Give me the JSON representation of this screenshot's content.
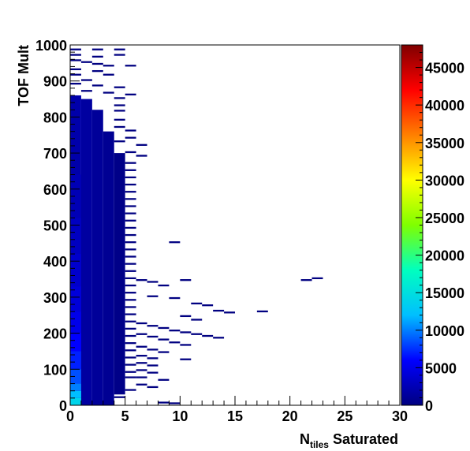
{
  "chart_data": {
    "type": "heatmap",
    "title": "",
    "xlabel": {
      "main": "N",
      "sub": "tiles",
      "rest": " Saturated"
    },
    "ylabel": "TOF Mult",
    "xlim": [
      0,
      30
    ],
    "ylim": [
      0,
      1000
    ],
    "x_bin_width": 1,
    "y_bin_width": 5,
    "x_ticks": [
      0,
      5,
      10,
      15,
      20,
      25,
      30
    ],
    "x_tick_labels": [
      "0",
      "5",
      "10",
      "15",
      "20",
      "25",
      "30"
    ],
    "y_ticks": [
      0,
      100,
      200,
      300,
      400,
      500,
      600,
      700,
      800,
      900,
      1000
    ],
    "y_tick_labels": [
      "0",
      "100",
      "200",
      "300",
      "400",
      "500",
      "600",
      "700",
      "800",
      "900",
      "1000"
    ],
    "colorbar": {
      "range": [
        0,
        48000
      ],
      "ticks": [
        0,
        5000,
        10000,
        15000,
        20000,
        25000,
        30000,
        35000,
        40000,
        45000
      ],
      "tick_labels": [
        "0",
        "5000",
        "10000",
        "15000",
        "20000",
        "25000",
        "30000",
        "35000",
        "40000",
        "45000"
      ],
      "colormap": [
        "#000080",
        "#0000ff",
        "#00bfff",
        "#00ffbf",
        "#7fff00",
        "#ffff00",
        "#ff8000",
        "#ff0000",
        "#800000"
      ]
    },
    "columns": [
      {
        "x": 0,
        "y_from": 0,
        "y_to": 860,
        "value": 2000
      },
      {
        "x": 1,
        "y_from": 0,
        "y_to": 850,
        "value": 1500
      },
      {
        "x": 2,
        "y_from": 0,
        "y_to": 820,
        "value": 1200
      },
      {
        "x": 3,
        "y_from": 0,
        "y_to": 760,
        "value": 900
      },
      {
        "x": 4,
        "y_from": 30,
        "y_to": 700,
        "value": 400
      }
    ],
    "low_end_column": [
      {
        "y_from": 0,
        "y_to": 20,
        "value": 14000
      },
      {
        "y_from": 20,
        "y_to": 40,
        "value": 12000
      },
      {
        "y_from": 40,
        "y_to": 60,
        "value": 10000
      },
      {
        "y_from": 60,
        "y_to": 100,
        "value": 8500
      },
      {
        "y_from": 100,
        "y_to": 150,
        "value": 7000
      },
      {
        "y_from": 150,
        "y_to": 200,
        "value": 6000
      },
      {
        "y_from": 200,
        "y_to": 260,
        "value": 5000
      },
      {
        "y_from": 260,
        "y_to": 330,
        "value": 4200
      },
      {
        "y_from": 330,
        "y_to": 420,
        "value": 3600
      },
      {
        "y_from": 420,
        "y_to": 520,
        "value": 3000
      },
      {
        "y_from": 520,
        "y_to": 640,
        "value": 2500
      }
    ],
    "sparse_bins": [
      [
        0,
        985
      ],
      [
        2,
        985
      ],
      [
        4,
        985
      ],
      [
        0,
        970
      ],
      [
        2,
        965
      ],
      [
        4,
        970
      ],
      [
        0,
        955
      ],
      [
        1,
        950
      ],
      [
        2,
        945
      ],
      [
        3,
        940
      ],
      [
        5,
        940
      ],
      [
        0,
        930
      ],
      [
        2,
        925
      ],
      [
        0,
        915
      ],
      [
        3,
        915
      ],
      [
        1,
        900
      ],
      [
        0,
        890
      ],
      [
        2,
        885
      ],
      [
        4,
        880
      ],
      [
        1,
        870
      ],
      [
        3,
        865
      ],
      [
        5,
        860
      ],
      [
        4,
        850
      ],
      [
        4,
        830
      ],
      [
        4,
        815
      ],
      [
        4,
        790
      ],
      [
        4,
        770
      ],
      [
        5,
        760
      ],
      [
        5,
        740
      ],
      [
        4,
        730
      ],
      [
        6,
        720
      ],
      [
        5,
        700
      ],
      [
        6,
        690
      ],
      [
        5,
        670
      ],
      [
        5,
        650
      ],
      [
        5,
        630
      ],
      [
        5,
        610
      ],
      [
        5,
        590
      ],
      [
        5,
        570
      ],
      [
        5,
        550
      ],
      [
        5,
        530
      ],
      [
        5,
        510
      ],
      [
        5,
        490
      ],
      [
        5,
        470
      ],
      [
        5,
        450
      ],
      [
        5,
        430
      ],
      [
        5,
        410
      ],
      [
        5,
        390
      ],
      [
        5,
        370
      ],
      [
        5,
        350
      ],
      [
        5,
        330
      ],
      [
        5,
        310
      ],
      [
        5,
        290
      ],
      [
        5,
        270
      ],
      [
        5,
        250
      ],
      [
        5,
        230
      ],
      [
        5,
        210
      ],
      [
        5,
        190
      ],
      [
        5,
        170
      ],
      [
        5,
        150
      ],
      [
        5,
        130
      ],
      [
        5,
        110
      ],
      [
        5,
        90
      ],
      [
        5,
        75
      ],
      [
        4,
        20
      ],
      [
        9,
        450
      ],
      [
        6,
        345
      ],
      [
        7,
        340
      ],
      [
        10,
        345
      ],
      [
        8,
        330
      ],
      [
        7,
        300
      ],
      [
        9,
        295
      ],
      [
        11,
        280
      ],
      [
        12,
        275
      ],
      [
        13,
        260
      ],
      [
        14,
        255
      ],
      [
        17,
        258
      ],
      [
        21,
        345
      ],
      [
        22,
        350
      ],
      [
        10,
        245
      ],
      [
        11,
        235
      ],
      [
        6,
        225
      ],
      [
        7,
        218
      ],
      [
        8,
        212
      ],
      [
        9,
        205
      ],
      [
        10,
        200
      ],
      [
        11,
        195
      ],
      [
        12,
        190
      ],
      [
        13,
        185
      ],
      [
        6,
        195
      ],
      [
        7,
        188
      ],
      [
        8,
        180
      ],
      [
        9,
        172
      ],
      [
        10,
        165
      ],
      [
        6,
        160
      ],
      [
        7,
        152
      ],
      [
        8,
        145
      ],
      [
        6,
        135
      ],
      [
        7,
        128
      ],
      [
        10,
        125
      ],
      [
        6,
        115
      ],
      [
        7,
        108
      ],
      [
        6,
        95
      ],
      [
        7,
        88
      ],
      [
        6,
        75
      ],
      [
        8,
        68
      ],
      [
        6,
        55
      ],
      [
        7,
        48
      ],
      [
        5,
        40
      ],
      [
        8,
        5
      ],
      [
        9,
        3
      ]
    ]
  }
}
